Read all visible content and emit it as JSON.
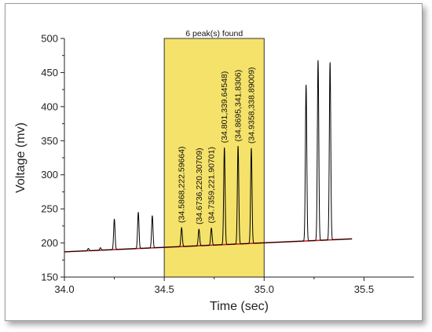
{
  "chart_data": {
    "type": "line",
    "xlabel": "Time (sec)",
    "ylabel": "Voltage (mv)",
    "xlim": [
      34.0,
      35.75
    ],
    "ylim": [
      150,
      500
    ],
    "x_ticks": [
      "34.0",
      "34.5",
      "35.0",
      "35.5"
    ],
    "x_tick_values": [
      34.0,
      34.5,
      35.0,
      35.5
    ],
    "y_ticks": [
      "150",
      "200",
      "250",
      "300",
      "350",
      "400",
      "450",
      "500"
    ],
    "y_tick_values": [
      150,
      200,
      250,
      300,
      350,
      400,
      450,
      500
    ],
    "grid": false,
    "signal": {
      "color": "#000000",
      "x_start": 34.0,
      "x_end": 35.44,
      "baseline_start": 187,
      "baseline_end": 206,
      "peaks": [
        {
          "x": 34.12,
          "y": 192
        },
        {
          "x": 34.18,
          "y": 193
        },
        {
          "x": 34.25,
          "y": 235
        },
        {
          "x": 34.37,
          "y": 245
        },
        {
          "x": 34.44,
          "y": 240
        },
        {
          "x": 34.5868,
          "y": 222.59664
        },
        {
          "x": 34.6736,
          "y": 220.30709
        },
        {
          "x": 34.7359,
          "y": 221.90701
        },
        {
          "x": 34.801,
          "y": 339.64548
        },
        {
          "x": 34.8695,
          "y": 341.8306
        },
        {
          "x": 34.9358,
          "y": 338.89009
        },
        {
          "x": 35.21,
          "y": 432
        },
        {
          "x": 35.27,
          "y": 468
        },
        {
          "x": 35.33,
          "y": 465
        }
      ]
    },
    "baseline_fit": {
      "color": "#cc2222",
      "x": [
        34.0,
        35.44
      ],
      "y": [
        187,
        206
      ]
    },
    "highlight_region": {
      "x_start": 34.5,
      "x_end": 35.0,
      "color": "#f5e26a",
      "title": "6 peak(s) found"
    },
    "peak_labels": [
      {
        "x": 34.5868,
        "y": 222.59664,
        "text": "(34.5868,222.59664)"
      },
      {
        "x": 34.6736,
        "y": 220.30709,
        "text": "(34.6736,220.30709)"
      },
      {
        "x": 34.7359,
        "y": 221.90701,
        "text": "(34.7359,221.90701)"
      },
      {
        "x": 34.801,
        "y": 339.64548,
        "text": "(34.801,339.64548)"
      },
      {
        "x": 34.8695,
        "y": 341.8306,
        "text": "(34.8695,341.8306)"
      },
      {
        "x": 34.9358,
        "y": 338.89009,
        "text": "(34.9358,338.89009)"
      }
    ]
  }
}
